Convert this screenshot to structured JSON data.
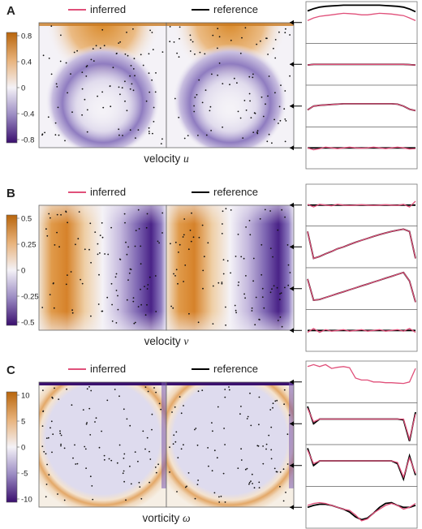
{
  "legend": {
    "inferred": "inferred",
    "reference": "reference",
    "colors": {
      "inferred": "#e0507a",
      "reference": "#000000"
    }
  },
  "colormap": {
    "low": "#3a0f6e",
    "mid": "#f4f2f7",
    "high": "#b8650c"
  },
  "panels": [
    {
      "letter": "A",
      "title": "velocity",
      "symbol": "u",
      "colorbar_ticks": [
        "0.8",
        "0.4",
        "0",
        "-0.4",
        "-0.8"
      ],
      "field": "u"
    },
    {
      "letter": "B",
      "title": "velocity",
      "symbol": "v",
      "colorbar_ticks": [
        "0.5",
        "0.25",
        "0",
        "-0.25",
        "-0.5"
      ],
      "field": "v"
    },
    {
      "letter": "C",
      "title": "vorticity",
      "symbol": "ω",
      "colorbar_ticks": [
        "10",
        "5",
        "0",
        "-5",
        "-10"
      ],
      "field": "w"
    }
  ],
  "chart_data": {
    "type": "heatmap",
    "description_series": [
      "inferred",
      "reference"
    ],
    "profiles": {
      "u": [
        {
          "inferred": [
            0.55,
            0.62,
            0.66,
            0.68,
            0.7,
            0.72,
            0.74,
            0.73,
            0.72,
            0.7,
            0.7,
            0.72,
            0.74,
            0.73,
            0.72,
            0.7,
            0.68,
            0.62,
            0.55
          ],
          "reference": [
            0.8,
            0.86,
            0.9,
            0.92,
            0.93,
            0.94,
            0.95,
            0.95,
            0.95,
            0.95,
            0.95,
            0.95,
            0.95,
            0.94,
            0.93,
            0.92,
            0.9,
            0.85,
            0.78
          ]
        },
        {
          "inferred": [
            0.48,
            0.5,
            0.5,
            0.5,
            0.5,
            0.5,
            0.5,
            0.5,
            0.5,
            0.5,
            0.5,
            0.5,
            0.5,
            0.5,
            0.5,
            0.5,
            0.5,
            0.49,
            0.48
          ],
          "reference": [
            0.48,
            0.5,
            0.5,
            0.5,
            0.5,
            0.5,
            0.5,
            0.5,
            0.5,
            0.5,
            0.5,
            0.5,
            0.5,
            0.5,
            0.5,
            0.5,
            0.5,
            0.49,
            0.48
          ]
        },
        {
          "inferred": [
            0.4,
            0.5,
            0.52,
            0.53,
            0.54,
            0.55,
            0.56,
            0.56,
            0.56,
            0.56,
            0.56,
            0.56,
            0.56,
            0.56,
            0.56,
            0.55,
            0.5,
            0.42,
            0.38
          ],
          "reference": [
            0.4,
            0.5,
            0.52,
            0.53,
            0.54,
            0.55,
            0.56,
            0.56,
            0.56,
            0.56,
            0.56,
            0.56,
            0.56,
            0.56,
            0.56,
            0.55,
            0.5,
            0.42,
            0.38
          ]
        },
        {
          "inferred": [
            0.5,
            0.45,
            0.48,
            0.52,
            0.5,
            0.48,
            0.5,
            0.52,
            0.5,
            0.49,
            0.5,
            0.52,
            0.5,
            0.48,
            0.5,
            0.52,
            0.5,
            0.47,
            0.48
          ],
          "reference": [
            0.5,
            0.5,
            0.5,
            0.5,
            0.5,
            0.5,
            0.5,
            0.5,
            0.5,
            0.5,
            0.5,
            0.5,
            0.5,
            0.5,
            0.5,
            0.5,
            0.5,
            0.5,
            0.5
          ]
        }
      ],
      "v": [
        {
          "inferred": [
            0.52,
            0.45,
            0.52,
            0.5,
            0.48,
            0.52,
            0.5,
            0.49,
            0.5,
            0.51,
            0.5,
            0.49,
            0.5,
            0.51,
            0.5,
            0.49,
            0.52,
            0.45,
            0.6
          ],
          "reference": [
            0.5,
            0.5,
            0.5,
            0.5,
            0.5,
            0.5,
            0.5,
            0.5,
            0.5,
            0.5,
            0.5,
            0.5,
            0.5,
            0.5,
            0.5,
            0.5,
            0.5,
            0.5,
            0.5
          ]
        },
        {
          "inferred": [
            0.9,
            0.2,
            0.25,
            0.32,
            0.38,
            0.45,
            0.5,
            0.56,
            0.62,
            0.67,
            0.72,
            0.77,
            0.82,
            0.86,
            0.9,
            0.93,
            0.96,
            0.9,
            0.2
          ],
          "reference": [
            0.9,
            0.2,
            0.25,
            0.32,
            0.38,
            0.45,
            0.5,
            0.56,
            0.62,
            0.67,
            0.72,
            0.77,
            0.82,
            0.86,
            0.9,
            0.93,
            0.96,
            0.9,
            0.2
          ]
        },
        {
          "inferred": [
            0.75,
            0.2,
            0.22,
            0.27,
            0.32,
            0.37,
            0.42,
            0.47,
            0.52,
            0.57,
            0.62,
            0.67,
            0.72,
            0.77,
            0.82,
            0.87,
            0.92,
            0.7,
            0.15
          ],
          "reference": [
            0.75,
            0.2,
            0.22,
            0.27,
            0.32,
            0.37,
            0.42,
            0.47,
            0.52,
            0.57,
            0.62,
            0.67,
            0.72,
            0.77,
            0.82,
            0.87,
            0.92,
            0.7,
            0.15
          ]
        },
        {
          "inferred": [
            0.45,
            0.55,
            0.45,
            0.52,
            0.48,
            0.5,
            0.52,
            0.48,
            0.5,
            0.52,
            0.48,
            0.5,
            0.52,
            0.48,
            0.5,
            0.52,
            0.48,
            0.55,
            0.45
          ],
          "reference": [
            0.5,
            0.5,
            0.5,
            0.5,
            0.5,
            0.5,
            0.5,
            0.5,
            0.5,
            0.5,
            0.5,
            0.5,
            0.5,
            0.5,
            0.5,
            0.5,
            0.5,
            0.5,
            0.5
          ]
        }
      ],
      "w": [
        {
          "inferred": [
            0.9,
            0.95,
            0.9,
            0.95,
            0.85,
            0.88,
            0.9,
            0.87,
            0.6,
            0.55,
            0.55,
            0.5,
            0.5,
            0.48,
            0.48,
            0.47,
            0.46,
            0.5,
            0.85
          ],
          "reference": [
            null,
            null,
            null,
            null,
            null,
            null,
            null,
            null,
            null,
            null,
            null,
            null,
            null,
            null,
            null,
            null,
            null,
            null,
            null
          ]
        },
        {
          "inferred": [
            0.9,
            0.55,
            0.62,
            0.62,
            0.62,
            0.62,
            0.62,
            0.62,
            0.62,
            0.62,
            0.62,
            0.62,
            0.62,
            0.62,
            0.62,
            0.62,
            0.62,
            0.1,
            0.75
          ],
          "reference": [
            0.95,
            0.5,
            0.62,
            0.62,
            0.62,
            0.62,
            0.62,
            0.62,
            0.62,
            0.62,
            0.62,
            0.62,
            0.62,
            0.62,
            0.62,
            0.62,
            0.6,
            0.05,
            0.8
          ]
        },
        {
          "inferred": [
            0.9,
            0.55,
            0.62,
            0.62,
            0.62,
            0.62,
            0.62,
            0.62,
            0.62,
            0.62,
            0.62,
            0.62,
            0.62,
            0.62,
            0.62,
            0.58,
            0.2,
            0.7,
            0.3
          ],
          "reference": [
            0.95,
            0.5,
            0.62,
            0.62,
            0.62,
            0.62,
            0.62,
            0.62,
            0.62,
            0.62,
            0.62,
            0.62,
            0.62,
            0.62,
            0.62,
            0.55,
            0.15,
            0.75,
            0.25
          ]
        },
        {
          "inferred": [
            0.55,
            0.6,
            0.62,
            0.6,
            0.55,
            0.5,
            0.45,
            0.42,
            0.3,
            0.15,
            0.2,
            0.35,
            0.45,
            0.55,
            0.6,
            0.55,
            0.45,
            0.5,
            0.6
          ],
          "reference": [
            0.5,
            0.55,
            0.58,
            0.58,
            0.55,
            0.5,
            0.45,
            0.38,
            0.25,
            0.18,
            0.22,
            0.35,
            0.5,
            0.6,
            0.62,
            0.55,
            0.5,
            0.5,
            0.55
          ]
        }
      ]
    }
  }
}
